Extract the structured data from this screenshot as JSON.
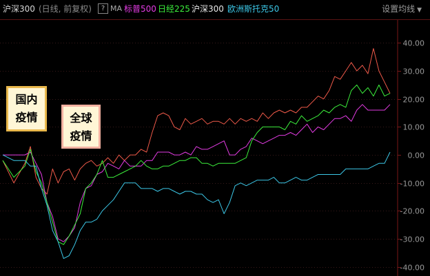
{
  "header": {
    "title": "沪深300",
    "subtitle": "(日线, 前复权)",
    "help_icon": "?",
    "ma_label": "MA",
    "legend": [
      {
        "label": "标普500",
        "color": "#e43ce4"
      },
      {
        "label": "日经225",
        "color": "#3cf03c"
      },
      {
        "label": "沪深300",
        "color": "#e8e8e8"
      },
      {
        "label": "欧洲斯托克50",
        "color": "#3cc8e8"
      }
    ],
    "settings_label": "设置均线",
    "settings_icon": "caret-down-icon"
  },
  "annotations": [
    {
      "text_line1": "国内",
      "text_line2": "疫情"
    },
    {
      "text_line1": "全球",
      "text_line2": "疫情"
    }
  ],
  "colors": {
    "hs300_line": "#f05a4a",
    "grid": "#3a1a1a"
  },
  "chart_data": {
    "type": "line",
    "x": [
      0,
      4,
      8,
      10,
      12,
      14,
      16,
      18,
      20,
      22,
      24,
      26,
      28,
      30,
      32,
      34,
      36,
      38,
      40,
      42,
      44,
      46,
      48,
      50,
      52,
      54,
      56,
      58,
      60,
      62,
      64,
      66,
      68,
      70,
      72,
      74,
      76,
      78,
      80,
      82,
      84,
      86,
      88,
      90,
      92,
      94,
      96,
      98,
      100,
      102,
      104,
      106,
      108,
      110,
      112,
      114,
      116,
      118,
      120,
      122,
      124,
      126,
      128,
      130,
      132,
      134,
      136,
      138,
      140
    ],
    "yticks": [
      40,
      30,
      20,
      10,
      0,
      -10,
      -20,
      -30,
      -40
    ],
    "ytick_labels": [
      "40.00",
      "30.00",
      "20.00",
      "10.00",
      "0.00",
      "-10.00",
      "-20.00",
      "-30.00",
      "-40.00"
    ],
    "ylim": [
      -43,
      45
    ],
    "xlim": [
      0,
      140
    ],
    "grid": true,
    "series": [
      {
        "name": "沪深300",
        "color": "#f05a4a",
        "values": [
          -2,
          -10,
          -3,
          3,
          -8,
          -12,
          -14,
          -5,
          -10,
          -6,
          -5,
          -9,
          -5,
          -3,
          -2,
          -4,
          -3,
          -1,
          -3,
          0,
          -2,
          0,
          0,
          2,
          1,
          8,
          14,
          15,
          14,
          10,
          9,
          13,
          11,
          12,
          13,
          11,
          12,
          12,
          11,
          13,
          11,
          13,
          12,
          13,
          12,
          15,
          13,
          15,
          16,
          15,
          16,
          15,
          17,
          17,
          19,
          21,
          20,
          23,
          28,
          27,
          30,
          33,
          30,
          32,
          29,
          38,
          30,
          26,
          22
        ]
      },
      {
        "name": "标普500",
        "color": "#e43ce4",
        "values": [
          0,
          0,
          0,
          1,
          -3,
          -7,
          -17,
          -22,
          -30,
          -31,
          -29,
          -26,
          -17,
          -12,
          -11,
          -7,
          -6,
          -3,
          -4,
          -5,
          -2,
          -4,
          -4,
          -4,
          -2,
          -2,
          1,
          1,
          1,
          0,
          0,
          1,
          0,
          3,
          2,
          2,
          3,
          4,
          5,
          0,
          0,
          2,
          3,
          6,
          5,
          4,
          5,
          6,
          7,
          7,
          8,
          7,
          9,
          11,
          8,
          10,
          9,
          11,
          13,
          13,
          14,
          12,
          16,
          18,
          16,
          16,
          16,
          16,
          18
        ]
      },
      {
        "name": "日经225",
        "color": "#3cf03c",
        "values": [
          -2,
          -8,
          -4,
          2,
          -6,
          -10,
          -17,
          -24,
          -31,
          -32,
          -29,
          -25,
          -21,
          -12,
          -10,
          -7,
          -2,
          -8,
          -8,
          -7,
          -6,
          -5,
          -4,
          -2,
          -4,
          -5,
          -5,
          -4,
          -4,
          -3,
          -2,
          -2,
          -1,
          -1,
          -3,
          -3,
          -4,
          -3,
          -3,
          -3,
          -3,
          -2,
          -1,
          5,
          8,
          10,
          10,
          10,
          10,
          9,
          12,
          11,
          14,
          12,
          13,
          14,
          16,
          15,
          17,
          18,
          17,
          23,
          25,
          22,
          24,
          21,
          25,
          21,
          22
        ]
      },
      {
        "name": "欧洲斯托克50",
        "color": "#3cc8e8",
        "values": [
          0,
          -2,
          -2,
          -4,
          -4,
          -12,
          -18,
          -27,
          -31,
          -37,
          -36,
          -32,
          -27,
          -24,
          -24,
          -23,
          -20,
          -18,
          -16,
          -13,
          -10,
          -10,
          -10,
          -12,
          -12,
          -12,
          -13,
          -12,
          -12,
          -13,
          -14,
          -13,
          -13,
          -14,
          -14,
          -16,
          -17,
          -16,
          -21,
          -17,
          -11,
          -10,
          -11,
          -10,
          -9,
          -9,
          -9,
          -8,
          -10,
          -10,
          -9,
          -8,
          -9,
          -9,
          -8,
          -7,
          -7,
          -7,
          -7,
          -7,
          -5,
          -5,
          -5,
          -5,
          -5,
          -4,
          -3,
          -3,
          1
        ]
      }
    ]
  }
}
